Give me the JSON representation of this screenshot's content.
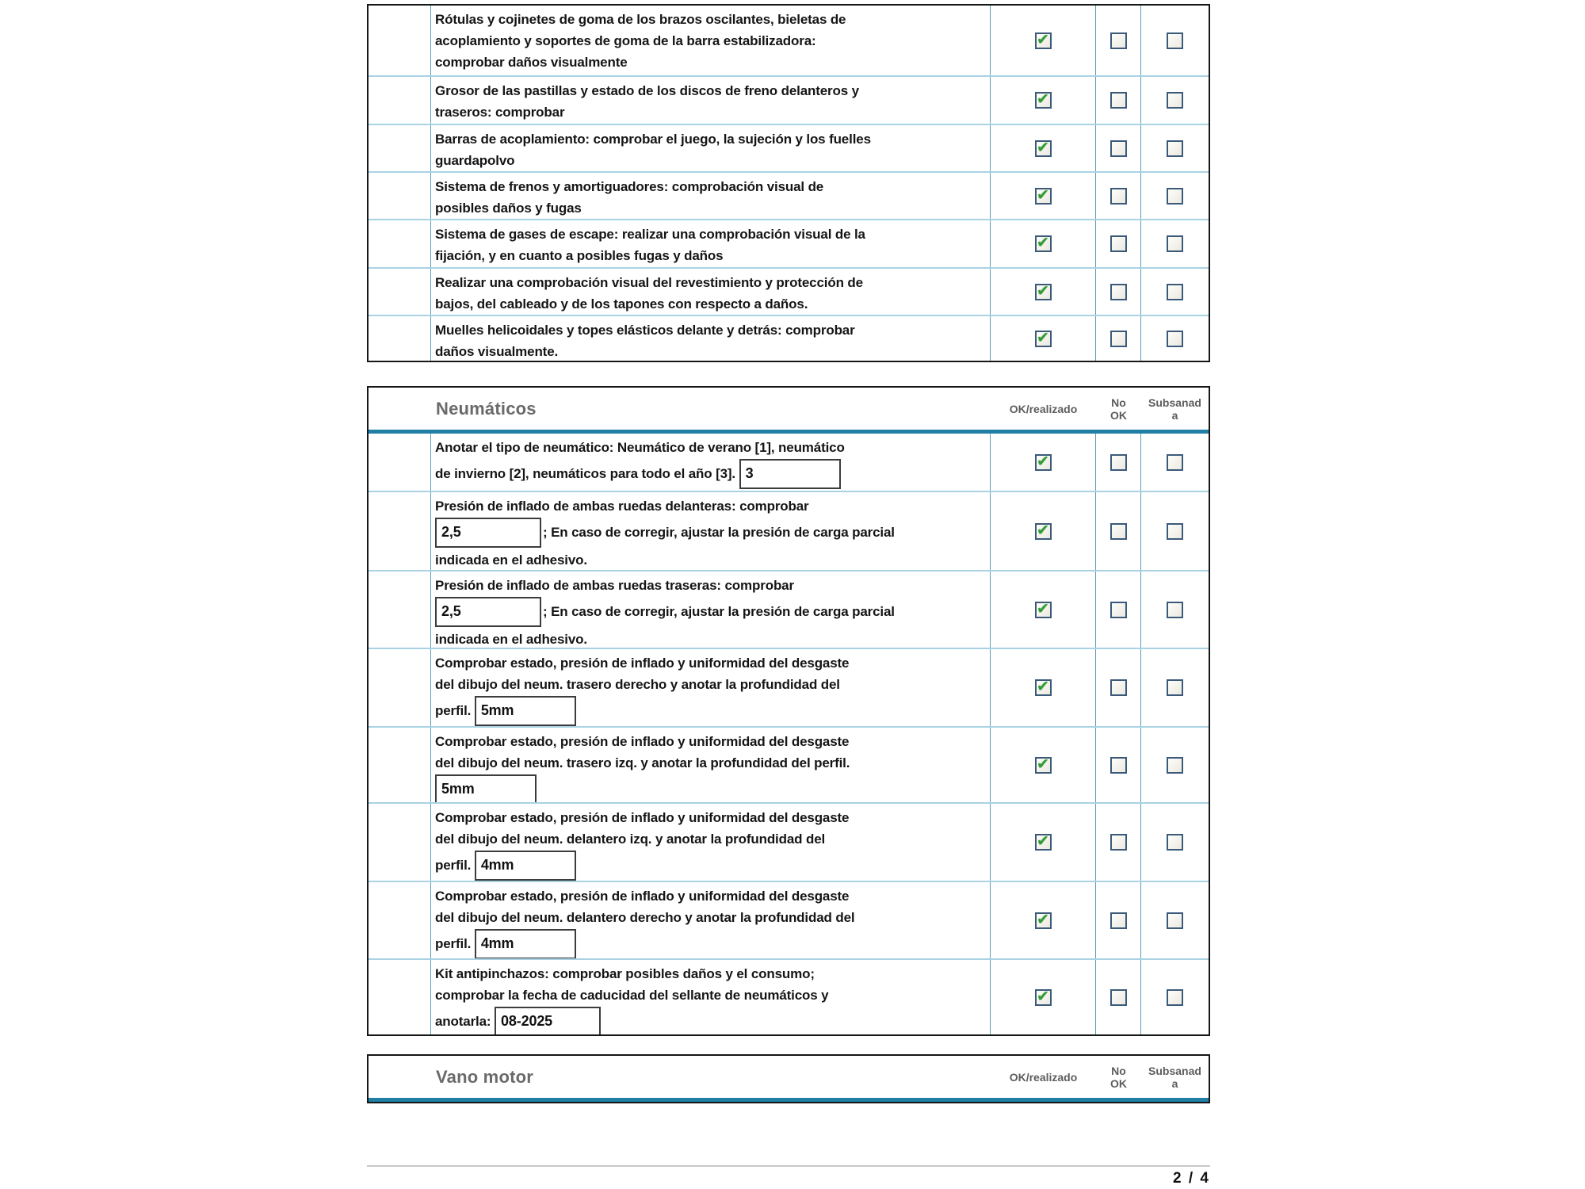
{
  "page": {
    "number_label": "2 / 4"
  },
  "colors": {
    "accent_teal": "#1f7fa4",
    "row_divider": "#a9d3e3",
    "column_divider": "#5b9db5",
    "check_green": "#2e9e33",
    "checkbox_border": "#3b5a7a"
  },
  "column_headers": {
    "ok": "OK/realizado",
    "no_ok": "No\nOK",
    "subsanada": "Subsanad\na"
  },
  "tables": [
    {
      "name": "continued-items",
      "title": null,
      "rows": [
        {
          "segments": [
            {
              "type": "text",
              "value": "Rótulas y cojinetes de goma de los brazos oscilantes, bieletas de\nacoplamiento y soportes de goma de la barra estabilizadora:\ncomprobar daños visualmente"
            }
          ],
          "status": {
            "ok": true,
            "no_ok": false,
            "subsanada": false
          }
        },
        {
          "segments": [
            {
              "type": "text",
              "value": "Grosor de las pastillas y estado de los discos de freno delanteros y\ntraseros: comprobar"
            }
          ],
          "status": {
            "ok": true,
            "no_ok": false,
            "subsanada": false
          }
        },
        {
          "segments": [
            {
              "type": "text",
              "value": "Barras de acoplamiento: comprobar el juego, la sujeción y los fuelles\nguardapolvo"
            }
          ],
          "status": {
            "ok": true,
            "no_ok": false,
            "subsanada": false
          }
        },
        {
          "segments": [
            {
              "type": "text",
              "value": "Sistema de frenos y amortiguadores: comprobación visual de\nposibles daños y fugas"
            }
          ],
          "status": {
            "ok": true,
            "no_ok": false,
            "subsanada": false
          }
        },
        {
          "segments": [
            {
              "type": "text",
              "value": "Sistema de gases de escape: realizar una comprobación visual de la\nfijación, y en cuanto a posibles fugas y daños"
            }
          ],
          "status": {
            "ok": true,
            "no_ok": false,
            "subsanada": false
          }
        },
        {
          "segments": [
            {
              "type": "text",
              "value": "Realizar una comprobación visual del revestimiento y protección de\nbajos, del cableado y de los tapones con respecto a daños."
            }
          ],
          "status": {
            "ok": true,
            "no_ok": false,
            "subsanada": false
          }
        },
        {
          "segments": [
            {
              "type": "text",
              "value": "Muelles helicoidales y topes elásticos delante y detrás: comprobar\ndaños visualmente."
            }
          ],
          "status": {
            "ok": true,
            "no_ok": false,
            "subsanada": false
          }
        }
      ]
    },
    {
      "name": "neumaticos",
      "title": "Neumáticos",
      "rows": [
        {
          "segments": [
            {
              "type": "text",
              "value": "Anotar el tipo de neumático: Neumático de verano [1], neumático\nde invierno [2], neumáticos para todo el año [3]. "
            },
            {
              "type": "input",
              "name": "tire-type-input",
              "value": "3",
              "w": "w112"
            }
          ],
          "status": {
            "ok": true,
            "no_ok": false,
            "subsanada": false
          }
        },
        {
          "segments": [
            {
              "type": "text",
              "value": "Presión de inflado de ambas ruedas delanteras: comprobar\n"
            },
            {
              "type": "input",
              "name": "front-pressure-input",
              "value": "2,5",
              "w": "w118"
            },
            {
              "type": "text",
              "value": "; En caso de corregir, ajustar la presión de carga parcial\nindicada en el adhesivo."
            }
          ],
          "status": {
            "ok": true,
            "no_ok": false,
            "subsanada": false
          }
        },
        {
          "segments": [
            {
              "type": "text",
              "value": "Presión de inflado de ambas ruedas traseras: comprobar\n"
            },
            {
              "type": "input",
              "name": "rear-pressure-input",
              "value": "2,5",
              "w": "w118"
            },
            {
              "type": "text",
              "value": "; En caso de corregir, ajustar la presión de carga parcial\nindicada en el adhesivo."
            }
          ],
          "status": {
            "ok": true,
            "no_ok": false,
            "subsanada": false
          }
        },
        {
          "segments": [
            {
              "type": "text",
              "value": "Comprobar estado, presión de inflado y uniformidad del desgaste\ndel dibujo del neum. trasero derecho y anotar la profundidad del\nperfil. "
            },
            {
              "type": "input",
              "name": "tread-rear-right-input",
              "value": "5mm",
              "w": "w112"
            }
          ],
          "status": {
            "ok": true,
            "no_ok": false,
            "subsanada": false
          }
        },
        {
          "segments": [
            {
              "type": "text",
              "value": "Comprobar estado, presión de inflado y uniformidad del desgaste\ndel dibujo del neum. trasero izq. y anotar la profundidad del perfil.\n"
            },
            {
              "type": "input",
              "name": "tread-rear-left-input",
              "value": "5mm",
              "w": "w112"
            }
          ],
          "status": {
            "ok": true,
            "no_ok": false,
            "subsanada": false
          }
        },
        {
          "segments": [
            {
              "type": "text",
              "value": "Comprobar estado, presión de inflado y uniformidad del desgaste\ndel dibujo del neum. delantero izq. y anotar la profundidad del\nperfil. "
            },
            {
              "type": "input",
              "name": "tread-front-left-input",
              "value": "4mm",
              "w": "w112"
            }
          ],
          "status": {
            "ok": true,
            "no_ok": false,
            "subsanada": false
          }
        },
        {
          "segments": [
            {
              "type": "text",
              "value": "Comprobar estado, presión de inflado y uniformidad del desgaste\ndel dibujo del neum. delantero derecho y anotar la profundidad del\nperfil. "
            },
            {
              "type": "input",
              "name": "tread-front-right-input",
              "value": "4mm",
              "w": "w112"
            }
          ],
          "status": {
            "ok": true,
            "no_ok": false,
            "subsanada": false
          }
        },
        {
          "segments": [
            {
              "type": "text",
              "value": "Kit antipinchazos: comprobar posibles daños y el consumo;\ncomprobar la fecha de caducidad del sellante de neumáticos y\nanotarla: "
            },
            {
              "type": "input",
              "name": "sealant-expiry-input",
              "value": "08-2025",
              "w": "w118"
            }
          ],
          "status": {
            "ok": true,
            "no_ok": false,
            "subsanada": false
          }
        }
      ]
    },
    {
      "name": "vano-motor",
      "title": "Vano motor",
      "rows": []
    }
  ]
}
